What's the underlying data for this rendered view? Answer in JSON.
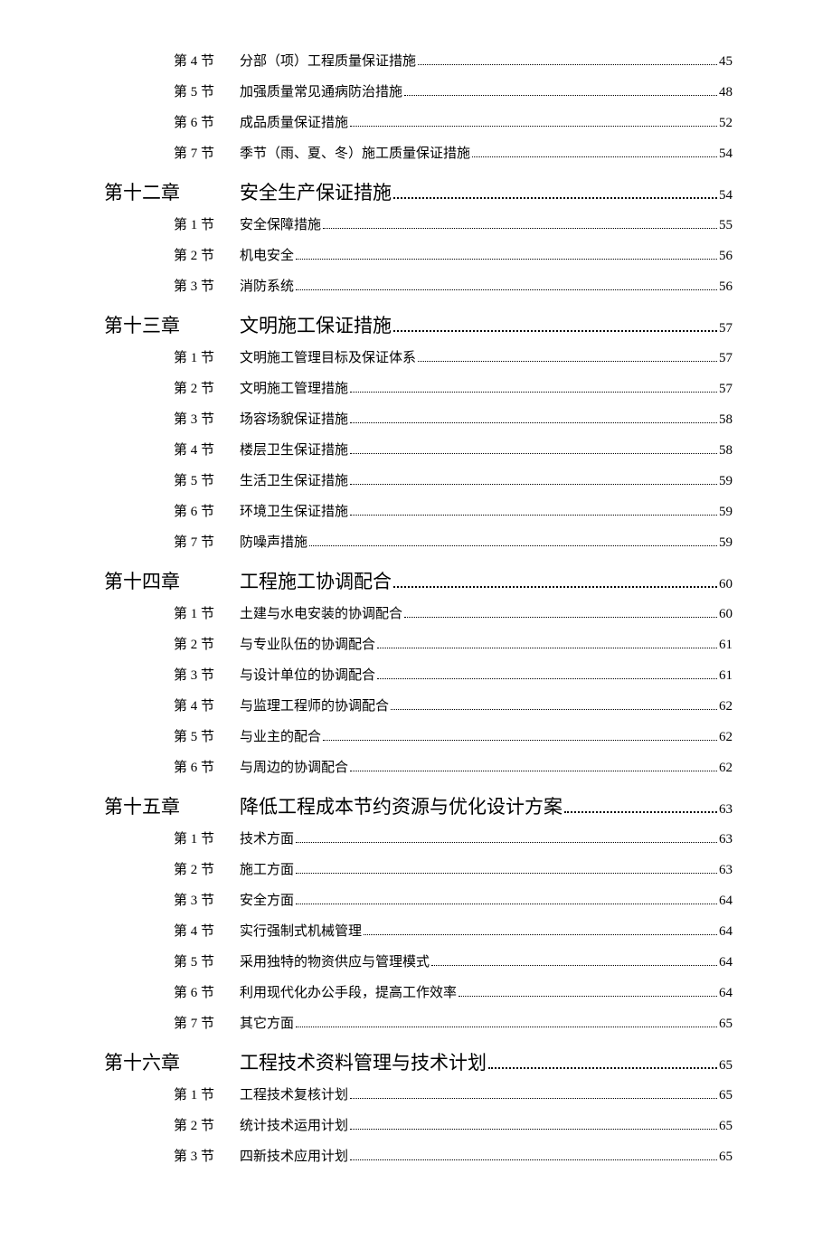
{
  "toc": {
    "preSections": [
      {
        "label": "第 4 节",
        "title": "分部（项）工程质量保证措施",
        "page": "45"
      },
      {
        "label": "第 5 节",
        "title": "加强质量常见通病防治措施",
        "page": "48"
      },
      {
        "label": "第 6 节",
        "title": "成品质量保证措施",
        "page": "52"
      },
      {
        "label": "第 7 节",
        "title": "季节（雨、夏、冬）施工质量保证措施",
        "page": "54"
      }
    ],
    "chapters": [
      {
        "label": "第十二章",
        "title": "安全生产保证措施",
        "page": "54",
        "sections": [
          {
            "label": "第 1 节",
            "title": "安全保障措施",
            "page": "55"
          },
          {
            "label": "第 2 节",
            "title": "机电安全",
            "page": "56"
          },
          {
            "label": "第 3 节",
            "title": "消防系统",
            "page": "56"
          }
        ]
      },
      {
        "label": "第十三章",
        "title": "文明施工保证措施",
        "page": "57",
        "sections": [
          {
            "label": "第 1 节",
            "title": "文明施工管理目标及保证体系",
            "page": "57"
          },
          {
            "label": "第 2 节",
            "title": "文明施工管理措施",
            "page": "57"
          },
          {
            "label": "第 3 节",
            "title": "场容场貌保证措施",
            "page": "58"
          },
          {
            "label": "第 4 节",
            "title": "楼层卫生保证措施",
            "page": "58"
          },
          {
            "label": "第 5 节",
            "title": "生活卫生保证措施",
            "page": "59"
          },
          {
            "label": "第 6 节",
            "title": "环境卫生保证措施",
            "page": "59"
          },
          {
            "label": "第 7 节",
            "title": "防噪声措施",
            "page": "59"
          }
        ]
      },
      {
        "label": "第十四章",
        "title": "工程施工协调配合",
        "page": "60",
        "sections": [
          {
            "label": "第 1 节",
            "title": "土建与水电安装的协调配合",
            "page": "60"
          },
          {
            "label": "第 2 节",
            "title": "与专业队伍的协调配合",
            "page": "61"
          },
          {
            "label": "第 3 节",
            "title": "与设计单位的协调配合",
            "page": "61"
          },
          {
            "label": "第 4 节",
            "title": "与监理工程师的协调配合",
            "page": "62"
          },
          {
            "label": "第 5 节",
            "title": "与业主的配合",
            "page": "62"
          },
          {
            "label": "第 6 节",
            "title": "与周边的协调配合",
            "page": "62"
          }
        ]
      },
      {
        "label": "第十五章",
        "title": "降低工程成本节约资源与优化设计方案",
        "page": "63",
        "sections": [
          {
            "label": "第 1 节",
            "title": "技术方面",
            "page": "63"
          },
          {
            "label": "第 2 节",
            "title": "施工方面",
            "page": "63"
          },
          {
            "label": "第 3 节",
            "title": "安全方面",
            "page": "64"
          },
          {
            "label": "第 4 节",
            "title": "实行强制式机械管理",
            "page": "64"
          },
          {
            "label": "第 5 节",
            "title": "采用独特的物资供应与管理模式",
            "page": "64"
          },
          {
            "label": "第 6 节",
            "title": "利用现代化办公手段，提高工作效率",
            "page": "64"
          },
          {
            "label": "第 7 节",
            "title": "其它方面",
            "page": "65"
          }
        ]
      },
      {
        "label": "第十六章",
        "title": "工程技术资料管理与技术计划",
        "page": "65",
        "sections": [
          {
            "label": "第 1 节",
            "title": "工程技术复核计划",
            "page": "65"
          },
          {
            "label": "第 2 节",
            "title": "统计技术运用计划",
            "page": "65"
          },
          {
            "label": "第 3 节",
            "title": "四新技术应用计划",
            "page": "65"
          }
        ]
      }
    ]
  }
}
